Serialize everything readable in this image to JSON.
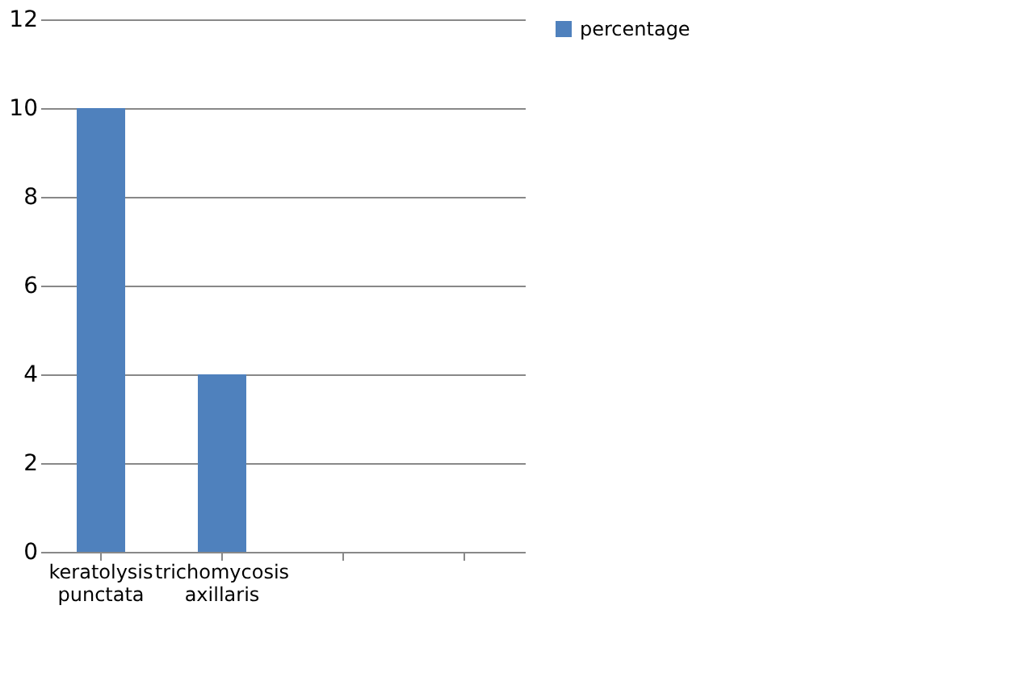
{
  "chart_data": {
    "type": "bar",
    "categories": [
      "keratolysis punctata",
      "trichomycosis axillaris",
      null,
      null
    ],
    "series": [
      {
        "name": "percentage",
        "color": "#4f81bd",
        "values": [
          10,
          4,
          null,
          null
        ]
      }
    ],
    "ylim": [
      0,
      12
    ],
    "yticks": [
      0,
      2,
      4,
      6,
      8,
      10,
      12
    ],
    "grid": "y",
    "legend": "right"
  }
}
